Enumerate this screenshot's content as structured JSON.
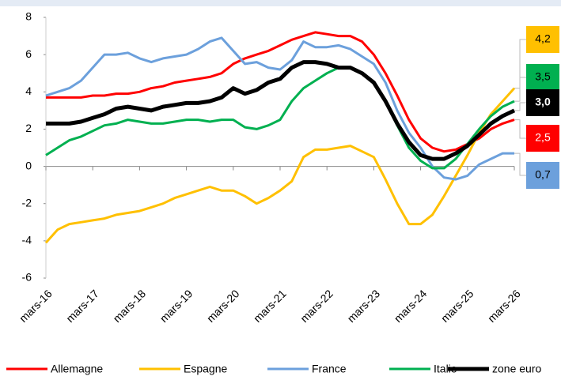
{
  "chart_data": {
    "type": "line",
    "categories": [
      "mars-16",
      null,
      null,
      null,
      "mars-17",
      null,
      null,
      null,
      "mars-18",
      null,
      null,
      null,
      "mars-19",
      null,
      null,
      null,
      "mars-20",
      null,
      null,
      null,
      "mars-21",
      null,
      null,
      null,
      "mars-22",
      null,
      null,
      null,
      "mars-23",
      null,
      null,
      null,
      "mars-24",
      null,
      null,
      null,
      "mars-25",
      null,
      null,
      null,
      "mars-26"
    ],
    "series": [
      {
        "name": "Allemagne",
        "color": "#ff0000",
        "last_label": "2,5",
        "values": [
          3.7,
          3.7,
          3.7,
          3.7,
          3.8,
          3.8,
          3.9,
          3.9,
          4.0,
          4.2,
          4.3,
          4.5,
          4.6,
          4.7,
          4.8,
          5.0,
          5.5,
          5.8,
          6.0,
          6.2,
          6.5,
          6.8,
          7.0,
          7.2,
          7.1,
          7.0,
          7.0,
          6.7,
          6.0,
          5.0,
          3.8,
          2.5,
          1.5,
          1.0,
          0.8,
          0.9,
          1.2,
          1.5,
          2.0,
          2.3,
          2.5
        ]
      },
      {
        "name": "Espagne",
        "color": "#ffc000",
        "last_label": "4,2",
        "values": [
          -4.1,
          -3.4,
          -3.1,
          -3.0,
          -2.9,
          -2.8,
          -2.6,
          -2.5,
          -2.4,
          -2.2,
          -2.0,
          -1.7,
          -1.5,
          -1.3,
          -1.1,
          -1.3,
          -1.3,
          -1.6,
          -2.0,
          -1.7,
          -1.3,
          -0.8,
          0.5,
          0.9,
          0.9,
          1.0,
          1.1,
          0.8,
          0.5,
          -0.7,
          -2.0,
          -3.1,
          -3.1,
          -2.6,
          -1.6,
          -0.5,
          0.6,
          1.8,
          2.8,
          3.5,
          4.2
        ]
      },
      {
        "name": "France",
        "color": "#6ca0dc",
        "last_label": "0,7",
        "values": [
          3.8,
          4.0,
          4.2,
          4.6,
          5.3,
          6.0,
          6.0,
          6.1,
          5.8,
          5.6,
          5.8,
          5.9,
          6.0,
          6.3,
          6.7,
          6.9,
          6.2,
          5.5,
          5.6,
          5.3,
          5.2,
          5.7,
          6.7,
          6.4,
          6.4,
          6.5,
          6.3,
          5.9,
          5.5,
          4.5,
          3.0,
          1.8,
          1.0,
          0.0,
          -0.6,
          -0.7,
          -0.5,
          0.1,
          0.4,
          0.7,
          0.7
        ]
      },
      {
        "name": "Italie",
        "color": "#00b050",
        "last_label": "3,5",
        "values": [
          0.6,
          1.0,
          1.4,
          1.6,
          1.9,
          2.2,
          2.3,
          2.5,
          2.4,
          2.3,
          2.3,
          2.4,
          2.5,
          2.5,
          2.4,
          2.5,
          2.5,
          2.1,
          2.0,
          2.2,
          2.5,
          3.5,
          4.2,
          4.6,
          5.0,
          5.3,
          5.3,
          5.0,
          4.5,
          3.5,
          2.2,
          1.0,
          0.3,
          -0.1,
          -0.1,
          0.4,
          1.2,
          2.0,
          2.7,
          3.2,
          3.5
        ]
      },
      {
        "name": "zone euro",
        "color": "#000000",
        "last_label": "3,0",
        "values": [
          2.3,
          2.3,
          2.3,
          2.4,
          2.6,
          2.8,
          3.1,
          3.2,
          3.1,
          3.0,
          3.2,
          3.3,
          3.4,
          3.4,
          3.5,
          3.7,
          4.2,
          3.9,
          4.1,
          4.5,
          4.7,
          5.3,
          5.6,
          5.6,
          5.5,
          5.3,
          5.3,
          5.0,
          4.5,
          3.5,
          2.3,
          1.3,
          0.6,
          0.4,
          0.4,
          0.7,
          1.1,
          1.7,
          2.3,
          2.7,
          3.0
        ]
      }
    ],
    "ylim": [
      -6,
      8
    ],
    "yticks": [
      -6,
      -4,
      -2,
      0,
      2,
      4,
      6,
      8
    ],
    "grid": false
  }
}
